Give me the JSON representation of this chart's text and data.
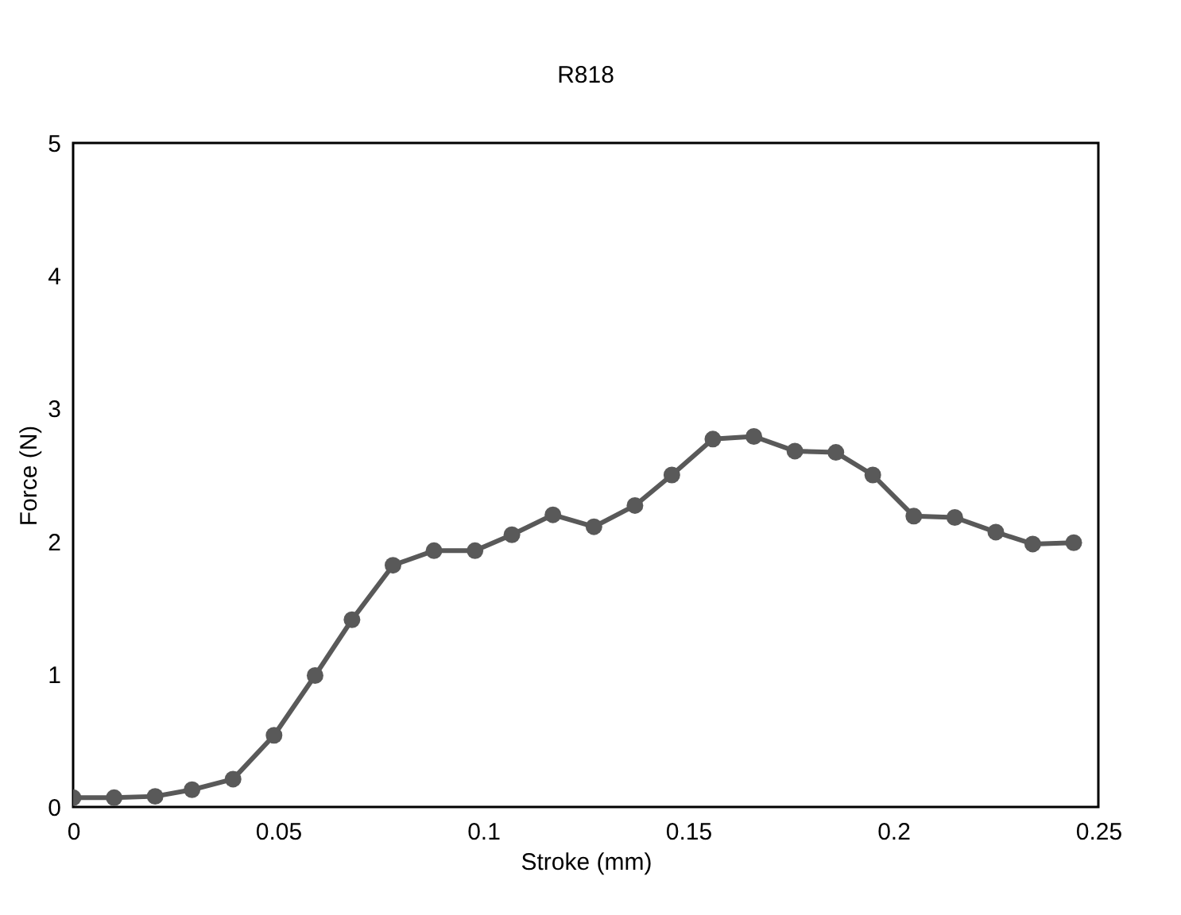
{
  "chart_data": {
    "type": "line",
    "title": "R818",
    "xlabel": "Stroke (mm)",
    "ylabel": "Force (N)",
    "x": [
      0,
      0.01,
      0.02,
      0.029,
      0.039,
      0.049,
      0.059,
      0.068,
      0.078,
      0.088,
      0.098,
      0.107,
      0.117,
      0.127,
      0.137,
      0.146,
      0.156,
      0.166,
      0.176,
      0.186,
      0.195,
      0.205,
      0.215,
      0.225,
      0.234,
      0.244
    ],
    "series": [
      {
        "color": "#595959",
        "values": [
          0.07,
          0.07,
          0.08,
          0.13,
          0.21,
          0.54,
          0.99,
          1.41,
          1.82,
          1.93,
          1.93,
          2.05,
          2.2,
          2.11,
          2.27,
          2.5,
          2.77,
          2.79,
          2.68,
          2.67,
          2.5,
          2.19,
          2.18,
          2.07,
          1.98,
          1.99
        ]
      }
    ],
    "xlim": [
      0,
      0.25
    ],
    "xticks": [
      0,
      0.05,
      0.1,
      0.15,
      0.2,
      0.25
    ],
    "ylim": [
      0,
      5
    ],
    "yticks": [
      0,
      1,
      2,
      3,
      4,
      5
    ],
    "grid": false,
    "legend": false,
    "marker": "circle",
    "line_style": "solid"
  }
}
